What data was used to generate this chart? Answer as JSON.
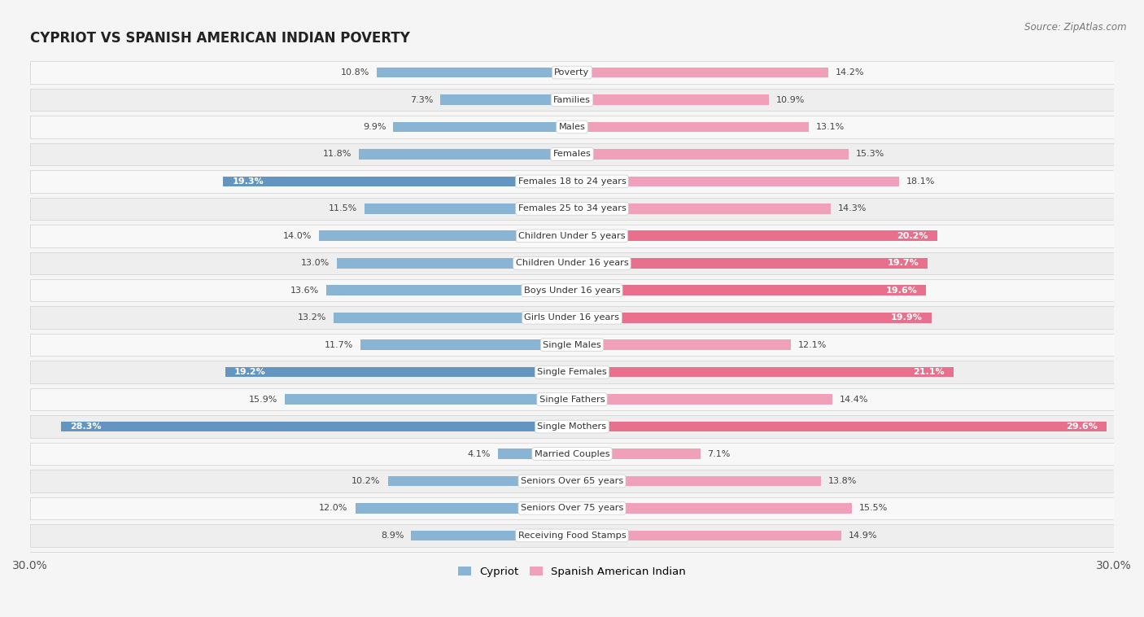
{
  "title": "CYPRIOT VS SPANISH AMERICAN INDIAN POVERTY",
  "source": "Source: ZipAtlas.com",
  "categories": [
    "Poverty",
    "Families",
    "Males",
    "Females",
    "Females 18 to 24 years",
    "Females 25 to 34 years",
    "Children Under 5 years",
    "Children Under 16 years",
    "Boys Under 16 years",
    "Girls Under 16 years",
    "Single Males",
    "Single Females",
    "Single Fathers",
    "Single Mothers",
    "Married Couples",
    "Seniors Over 65 years",
    "Seniors Over 75 years",
    "Receiving Food Stamps"
  ],
  "cypriot": [
    10.8,
    7.3,
    9.9,
    11.8,
    19.3,
    11.5,
    14.0,
    13.0,
    13.6,
    13.2,
    11.7,
    19.2,
    15.9,
    28.3,
    4.1,
    10.2,
    12.0,
    8.9
  ],
  "spanish_american_indian": [
    14.2,
    10.9,
    13.1,
    15.3,
    18.1,
    14.3,
    20.2,
    19.7,
    19.6,
    19.9,
    12.1,
    21.1,
    14.4,
    29.6,
    7.1,
    13.8,
    15.5,
    14.9
  ],
  "cypriot_color": "#8ab4d4",
  "spanish_color": "#f0a0b8",
  "cypriot_highlight_color": "#6494c0",
  "spanish_highlight_color": "#e8708c",
  "row_light_color": "#f0f0f0",
  "row_dark_color": "#e0e0e0",
  "background_color": "#f5f5f5",
  "separator_color": "#cccccc",
  "axis_limit": 30.0,
  "legend_cypriot": "Cypriot",
  "legend_spanish": "Spanish American Indian",
  "cypriot_highlight_indices": [
    4,
    11,
    13
  ],
  "spanish_highlight_indices": [
    6,
    7,
    8,
    9,
    11,
    13
  ]
}
